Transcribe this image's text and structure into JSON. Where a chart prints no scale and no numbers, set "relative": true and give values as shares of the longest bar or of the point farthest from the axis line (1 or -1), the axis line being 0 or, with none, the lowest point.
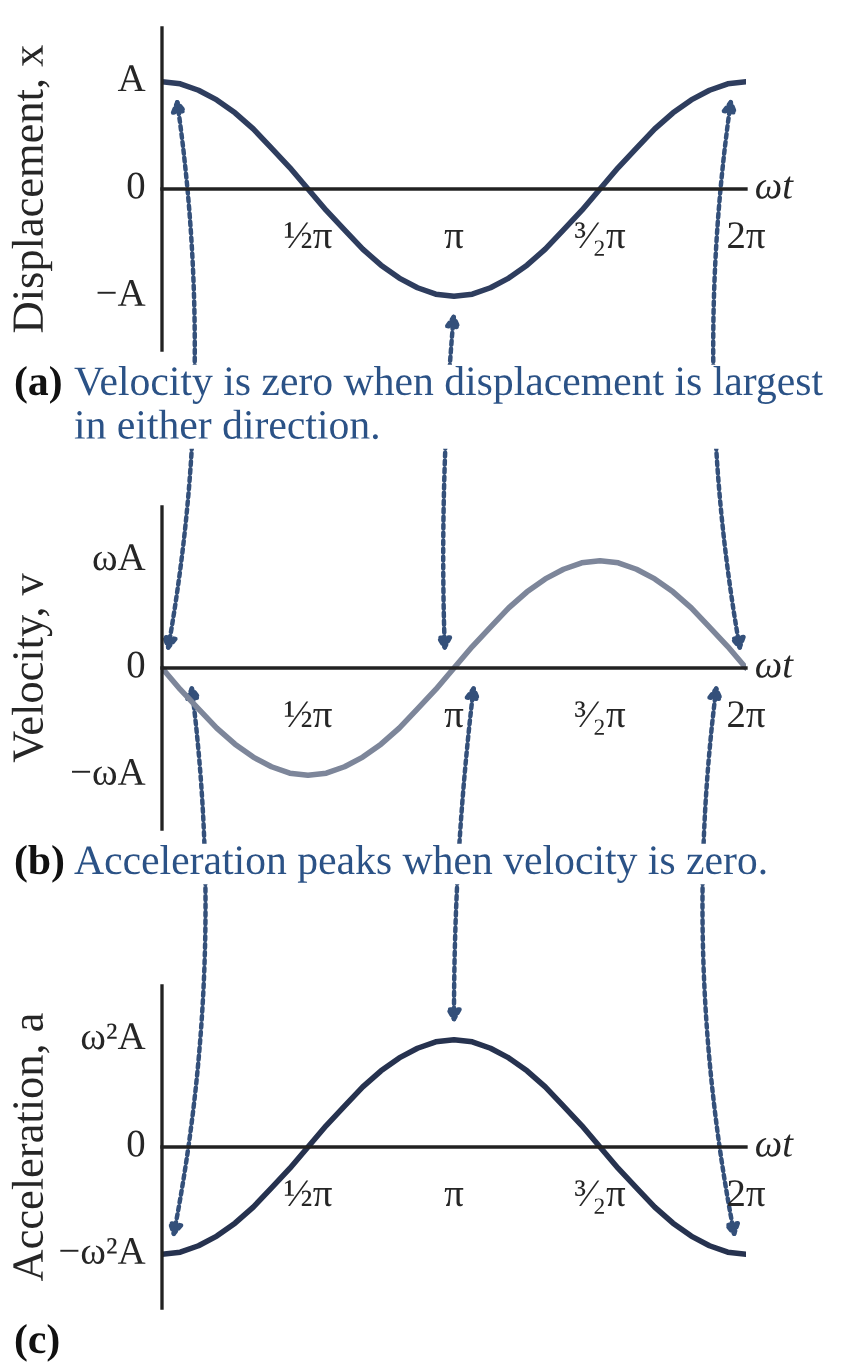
{
  "chart_data": [
    {
      "type": "line",
      "relative": true,
      "ylabel": "Displacement, x",
      "xlabel": "ωt",
      "categories": [
        null,
        null,
        null,
        null,
        null,
        null,
        null,
        null,
        "½π",
        null,
        null,
        null,
        null,
        null,
        null,
        null,
        "π",
        null,
        null,
        null,
        null,
        null,
        null,
        null,
        "³⁄₂π",
        null,
        null,
        null,
        null,
        null,
        null,
        null,
        "2π"
      ],
      "series": [
        {
          "color": "#2e3d5e",
          "values": [
            1,
            0.98,
            0.92,
            0.83,
            0.71,
            0.56,
            0.38,
            0.2,
            0,
            -0.2,
            -0.38,
            -0.56,
            -0.71,
            -0.83,
            -0.92,
            -0.98,
            -1,
            -0.98,
            -0.92,
            -0.83,
            -0.71,
            -0.56,
            -0.38,
            -0.2,
            0,
            0.2,
            0.38,
            0.56,
            0.71,
            0.83,
            0.92,
            0.98,
            1
          ]
        }
      ],
      "annotations": [
        "(a)",
        "Velocity is zero when displacement is largest in either direction.",
        "A",
        "0",
        "−A"
      ]
    },
    {
      "type": "line",
      "relative": true,
      "ylabel": "Velocity, v",
      "xlabel": "ωt",
      "categories": [
        null,
        null,
        null,
        null,
        null,
        null,
        null,
        null,
        "½π",
        null,
        null,
        null,
        null,
        null,
        null,
        null,
        "π",
        null,
        null,
        null,
        null,
        null,
        null,
        null,
        "³⁄₂π",
        null,
        null,
        null,
        null,
        null,
        null,
        null,
        "2π"
      ],
      "series": [
        {
          "color": "#7d869a",
          "values": [
            0,
            -0.2,
            -0.38,
            -0.56,
            -0.71,
            -0.83,
            -0.92,
            -0.98,
            -1,
            -0.98,
            -0.92,
            -0.83,
            -0.71,
            -0.56,
            -0.38,
            -0.2,
            0,
            0.2,
            0.38,
            0.56,
            0.71,
            0.83,
            0.92,
            0.98,
            1,
            0.98,
            0.92,
            0.83,
            0.71,
            0.56,
            0.38,
            0.2,
            0
          ]
        }
      ],
      "annotations": [
        "(b)",
        "Acceleration peaks when velocity is zero.",
        "ωA",
        "0",
        "−ωA"
      ]
    },
    {
      "type": "line",
      "relative": true,
      "ylabel": "Acceleration, a",
      "xlabel": "ωt",
      "categories": [
        null,
        null,
        null,
        null,
        null,
        null,
        null,
        null,
        "½π",
        null,
        null,
        null,
        null,
        null,
        null,
        null,
        "π",
        null,
        null,
        null,
        null,
        null,
        null,
        null,
        "³⁄₂π",
        null,
        null,
        null,
        null,
        null,
        null,
        null,
        "2π"
      ],
      "series": [
        {
          "color": "#26324f",
          "values": [
            -1,
            -0.98,
            -0.92,
            -0.83,
            -0.71,
            -0.56,
            -0.38,
            -0.2,
            0,
            0.2,
            0.38,
            0.56,
            0.71,
            0.83,
            0.92,
            0.98,
            1,
            0.98,
            0.92,
            0.83,
            0.71,
            0.56,
            0.38,
            0.2,
            0,
            -0.2,
            -0.38,
            -0.56,
            -0.71,
            -0.83,
            -0.92,
            -0.98,
            -1
          ]
        }
      ],
      "annotations": [
        "(c)",
        "ω²A",
        "0",
        "−ω²A"
      ]
    }
  ]
}
